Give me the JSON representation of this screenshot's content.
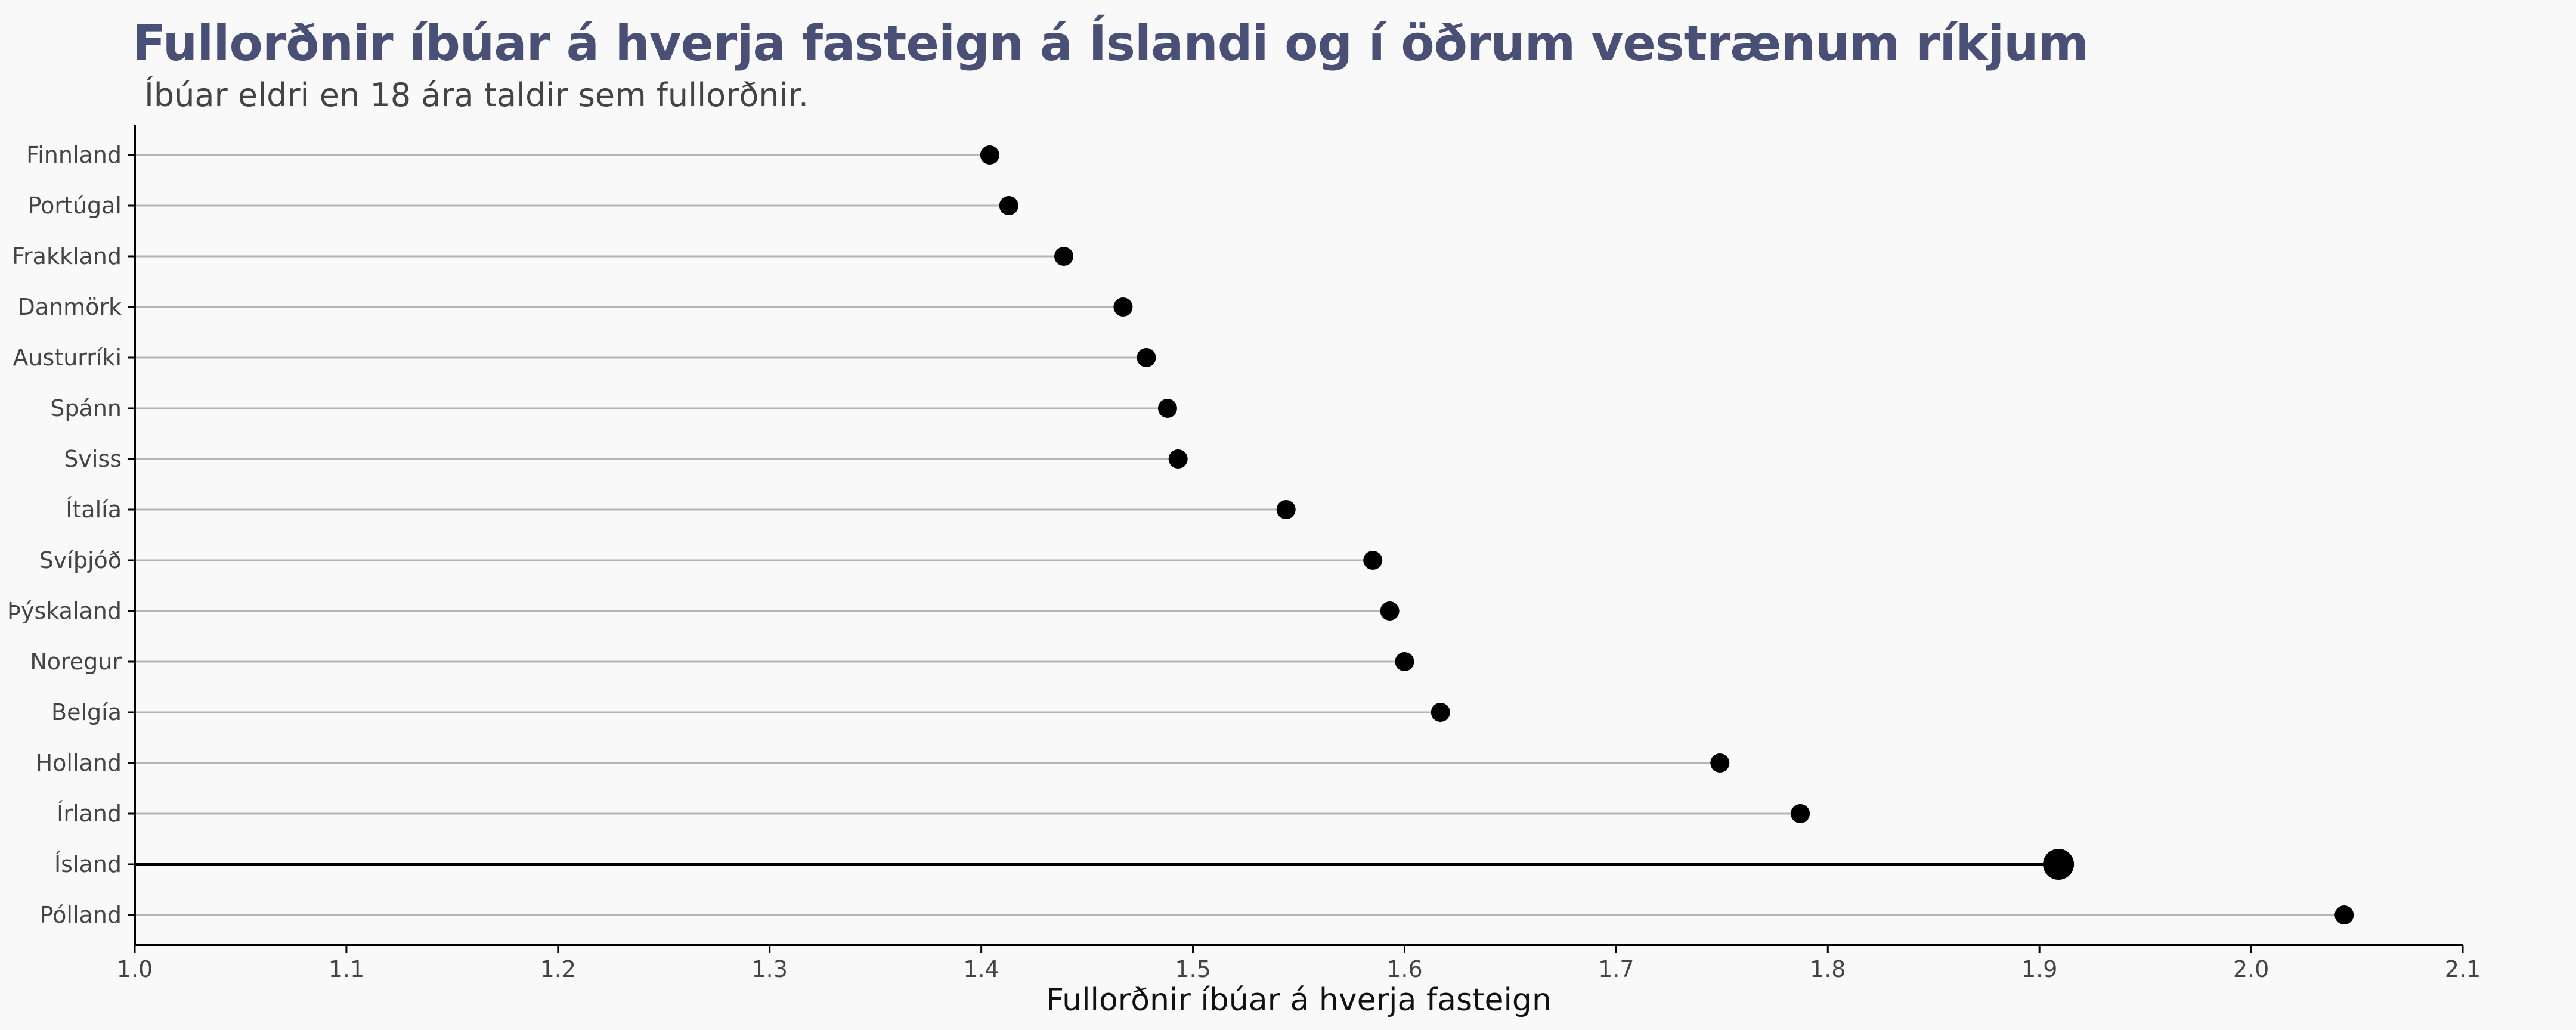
{
  "chart_data": {
    "type": "lollipop",
    "title": "Fullorðnir íbúar á hverja fasteign á Íslandi og í öðrum vestrænum ríkjum",
    "subtitle": "Íbúar eldri en 18 ára taldir sem fullorðnir.",
    "xlabel": "Fullorðnir íbúar á hverja fasteign",
    "ylabel": "",
    "xlim": [
      1.0,
      2.1
    ],
    "xticks": [
      "1.0",
      "1.1",
      "1.2",
      "1.3",
      "1.4",
      "1.5",
      "1.6",
      "1.7",
      "1.8",
      "1.9",
      "2.0",
      "2.1"
    ],
    "highlight": "Ísland",
    "grid": false,
    "colors": {
      "point": "#000000",
      "stem": "#b5b5b5",
      "highlight_stem": "#000000",
      "title": "#4a5075"
    },
    "categories": [
      "Finnland",
      "Portúgal",
      "Frakkland",
      "Danmörk",
      "Austurríki",
      "Spánn",
      "Sviss",
      "Ítalía",
      "Svíþjóð",
      "Þýskaland",
      "Noregur",
      "Belgía",
      "Holland",
      "Írland",
      "Ísland",
      "Pólland"
    ],
    "values": [
      1.404,
      1.413,
      1.439,
      1.467,
      1.478,
      1.488,
      1.493,
      1.544,
      1.585,
      1.593,
      1.6,
      1.617,
      1.749,
      1.787,
      1.909,
      2.044
    ]
  }
}
